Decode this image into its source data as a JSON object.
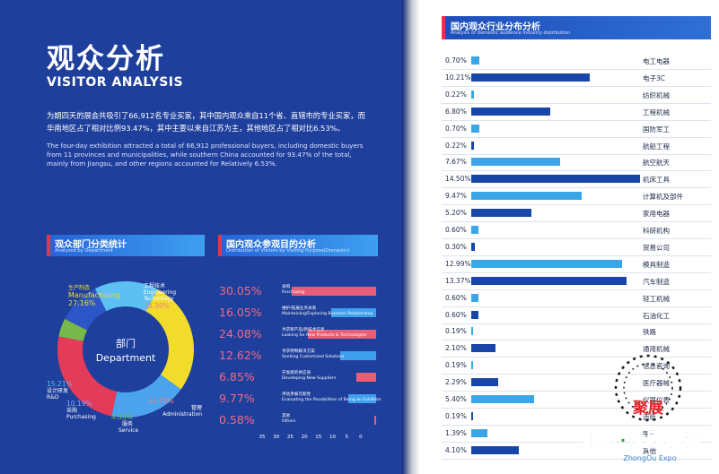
{
  "title_cn": "观众分析",
  "title_en": "VISITOR ANALYSIS",
  "intro_cn": "为期四天的展会共吸引了66,912名专业买家，其中国内观众来自11个省、直辖市的专业买家，而华南地区占了相对比例93.47%，其中主要以来自江苏为主，其他地区占了相对比6.53%。",
  "intro_en": "The four-day exhibition attracted a total of 66,912 professional buyers, including domestic buyers from 11 provinces and municipalities, while southern China accounted for 93.47% of the total, mainly from Jiangsu, and other regions accounted for Relatively 6.53%.",
  "dept": {
    "title_cn": "观众部门分类统计",
    "title_en": "Analyzed by Department",
    "center_cn": "部门",
    "center_en": "Department",
    "segments": [
      {
        "cn": "生产制造",
        "en": "Manufacturing",
        "pct": "27.16%",
        "value": 27.16,
        "color": "#f2dc2b"
      },
      {
        "cn": "工程技术",
        "en": "Engineering Technology",
        "pct": "18.36%",
        "value": 18.36,
        "color": "#4aa3ec"
      },
      {
        "cn": "管理",
        "en": "Administration",
        "pct": "24.75%",
        "value": 24.75,
        "color": "#e43b58"
      },
      {
        "cn": "服务",
        "en": "Service",
        "pct": "4.33%",
        "value": 4.33,
        "color": "#79b84a"
      },
      {
        "cn": "采购",
        "en": "Purchasing",
        "pct": "10.19%",
        "value": 10.19,
        "color": "#2c55c8"
      },
      {
        "cn": "设计研发",
        "en": "R&D",
        "pct": "15.21%",
        "value": 15.21,
        "color": "#5cc0f2"
      }
    ]
  },
  "purpose": {
    "title_cn": "国内观众参观目的分析",
    "title_en": "Distribution of Visitors by Visiting Purpose(Domestic)",
    "items": [
      {
        "pct": "30.05%",
        "value": 30.05,
        "cn": "采购",
        "en": "Purchasing",
        "color": "#e85e76"
      },
      {
        "pct": "16.05%",
        "value": 16.05,
        "cn": "维护/拓展业务关系",
        "en": "Maintaining/Exploring Business Relationship",
        "color": "#3ea0ee"
      },
      {
        "pct": "24.08%",
        "value": 24.08,
        "cn": "寻求新产品/新技术信息",
        "en": "Looking for New Products & Technologies",
        "color": "#e85e76"
      },
      {
        "pct": "12.62%",
        "value": 12.62,
        "cn": "寻求特制解决方案",
        "en": "Seeking Customized Solutions",
        "color": "#3ea0ee"
      },
      {
        "pct": "6.85%",
        "value": 6.85,
        "cn": "开发新的供应商",
        "en": "Developing New Suppliers",
        "color": "#e85e76"
      },
      {
        "pct": "9.77%",
        "value": 9.77,
        "cn": "评估参展可能性",
        "en": "Evaluating the Possibilities of Being an Exhibitor",
        "color": "#3ea0ee"
      },
      {
        "pct": "0.58%",
        "value": 0.58,
        "cn": "其他",
        "en": "Others",
        "color": "#e85e76"
      }
    ],
    "axis": [
      "35",
      "30",
      "25",
      "20",
      "15",
      "10",
      "5",
      "0"
    ]
  },
  "industry": {
    "title_cn": "国内观众行业分布分析",
    "title_en": "Analysis of domestic audience industry distribution",
    "items": [
      {
        "label": "0.70%",
        "value": 0.7,
        "name": "电工电器"
      },
      {
        "label": "10.21%",
        "value": 10.21,
        "name": "电子3C"
      },
      {
        "label": "0.22%",
        "value": 0.22,
        "name": "纺织机械"
      },
      {
        "label": "6.80%",
        "value": 6.8,
        "name": "工程机械"
      },
      {
        "label": "0.70%",
        "value": 0.7,
        "name": "国防军工"
      },
      {
        "label": "0.22%",
        "value": 0.22,
        "name": "航船工程"
      },
      {
        "label": "7.67%",
        "value": 7.67,
        "name": "航空航天"
      },
      {
        "label": "14.50%",
        "value": 14.5,
        "name": "机床工具"
      },
      {
        "label": "9.47%",
        "value": 9.47,
        "name": "计算机及部件"
      },
      {
        "label": "5.20%",
        "value": 5.2,
        "name": "家用电器"
      },
      {
        "label": "0.60%",
        "value": 0.6,
        "name": "科研机构"
      },
      {
        "label": "0.30%",
        "value": 0.3,
        "name": "贸易公司"
      },
      {
        "label": "12.99%",
        "value": 12.99,
        "name": "模具制造"
      },
      {
        "label": "13.37%",
        "value": 13.37,
        "name": "汽车制造"
      },
      {
        "label": "0.60%",
        "value": 0.6,
        "name": "轻工机械"
      },
      {
        "label": "0.60%",
        "value": 0.6,
        "name": "石油化工"
      },
      {
        "label": "0.19%",
        "value": 0.19,
        "name": "铁路"
      },
      {
        "label": "2.10%",
        "value": 2.1,
        "name": "通用机械"
      },
      {
        "label": "0.19%",
        "value": 0.19,
        "name": "信息咨询"
      },
      {
        "label": "2.29%",
        "value": 2.29,
        "name": "医疗器械"
      },
      {
        "label": "5.40%",
        "value": 5.4,
        "name": "仪器仪表"
      },
      {
        "label": "0.19%",
        "value": 0.19,
        "name": "造纸"
      },
      {
        "label": "1.39%",
        "value": 1.39,
        "name": "医药"
      },
      {
        "label": "4.10%",
        "value": 4.1,
        "name": "其他"
      }
    ],
    "colors": [
      "#3aa6e8",
      "#1745a8"
    ]
  },
  "watermark": {
    "brand": "聚展",
    "site_cn": "中欧·世界展会",
    "site_en": "ZhongOu Expo"
  },
  "chart_data": [
    {
      "type": "pie",
      "title": "观众部门分类统计",
      "categories": [
        "Manufacturing",
        "Engineering Technology",
        "Administration",
        "Service",
        "Purchasing",
        "R&D"
      ],
      "values": [
        27.16,
        18.36,
        24.75,
        4.33,
        10.19,
        15.21
      ]
    },
    {
      "type": "bar",
      "title": "国内观众参观目的分析",
      "categories": [
        "Purchasing",
        "Maintaining/Exploring Business Relationship",
        "Looking for New Products & Technologies",
        "Seeking Customized Solutions",
        "Developing New Suppliers",
        "Evaluating the Possibilities of Being an Exhibitor",
        "Others"
      ],
      "values": [
        30.05,
        16.05,
        24.08,
        12.62,
        6.85,
        9.77,
        0.58
      ],
      "xlim": [
        35,
        0
      ]
    },
    {
      "type": "bar",
      "title": "国内观众行业分布分析",
      "categories": [
        "电工电器",
        "电子3C",
        "纺织机械",
        "工程机械",
        "国防军工",
        "航船工程",
        "航空航天",
        "机床工具",
        "计算机及部件",
        "家用电器",
        "科研机构",
        "贸易公司",
        "模具制造",
        "汽车制造",
        "轻工机械",
        "石油化工",
        "铁路",
        "通用机械",
        "信息咨询",
        "医疗器械",
        "仪器仪表",
        "造纸",
        "医药",
        "其他"
      ],
      "values": [
        0.7,
        10.21,
        0.22,
        6.8,
        0.7,
        0.22,
        7.67,
        14.5,
        9.47,
        5.2,
        0.6,
        0.3,
        12.99,
        13.37,
        0.6,
        0.6,
        0.19,
        2.1,
        0.19,
        2.29,
        5.4,
        0.19,
        1.39,
        4.1
      ]
    }
  ]
}
